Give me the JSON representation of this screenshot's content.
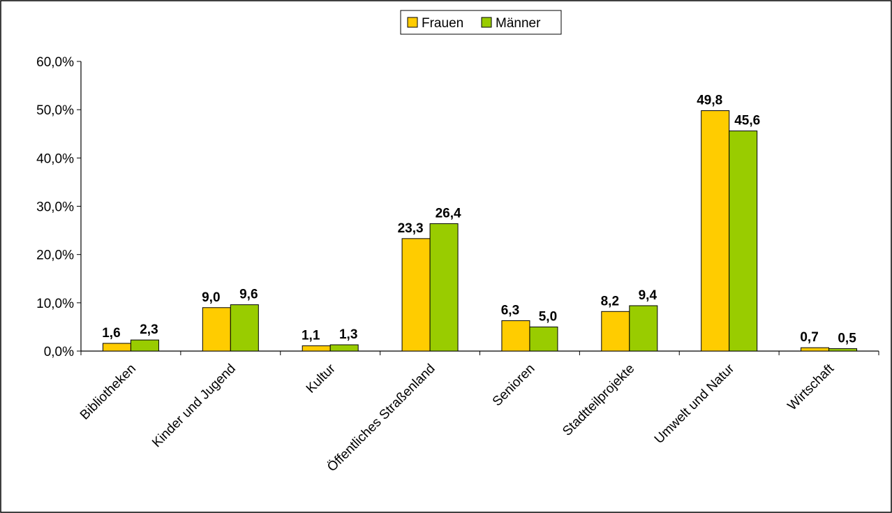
{
  "chart_data": {
    "type": "bar",
    "title": "",
    "xlabel": "",
    "ylabel": "",
    "ylim": [
      0,
      60
    ],
    "yticks": [
      "0,0%",
      "10,0%",
      "20,0%",
      "30,0%",
      "40,0%",
      "50,0%",
      "60,0%"
    ],
    "categories": [
      "Bibliotheken",
      "Kinder und Jugend",
      "Kultur",
      "Öffentliches Straßenland",
      "Senioren",
      "Stadtteilprojekte",
      "Umwelt und Natur",
      "Wirtschaft"
    ],
    "series": [
      {
        "name": "Frauen",
        "color": "#FFCC00",
        "values": [
          1.6,
          9.0,
          1.1,
          23.3,
          6.3,
          8.2,
          49.8,
          0.7
        ],
        "labels": [
          "1,6",
          "9,0",
          "1,1",
          "23,3",
          "6,3",
          "8,2",
          "49,8",
          "0,7"
        ]
      },
      {
        "name": "Männer",
        "color": "#99CC00",
        "values": [
          2.3,
          9.6,
          1.3,
          26.4,
          5.0,
          9.4,
          45.6,
          0.5
        ],
        "labels": [
          "2,3",
          "9,6",
          "1,3",
          "26,4",
          "5,0",
          "9,4",
          "45,6",
          "0,5"
        ]
      }
    ],
    "legend_position": "top-center",
    "grid": false
  }
}
